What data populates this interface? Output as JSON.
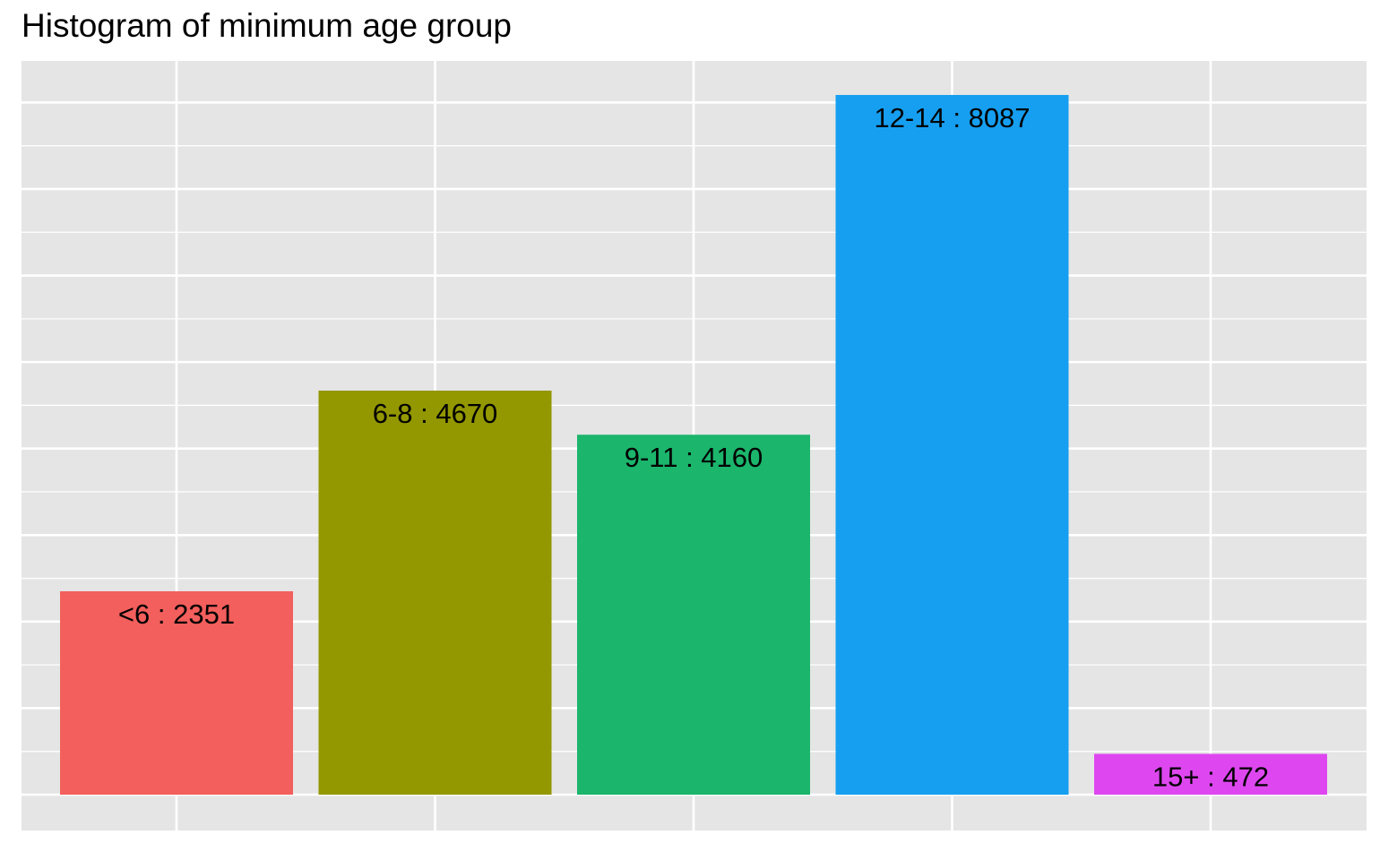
{
  "chart_data": {
    "type": "bar",
    "title": "Histogram of minimum age group",
    "xlabel": "",
    "ylabel": "",
    "categories": [
      "<6",
      "6-8",
      "9-11",
      "12-14",
      "15+"
    ],
    "values": [
      2351,
      4670,
      4160,
      8087,
      472
    ],
    "data_labels": [
      "<6 : 2351",
      "6-8 : 4670",
      "9-11 : 4160",
      "12-14 : 8087",
      "15+ : 472"
    ],
    "colors": [
      "#F25F5C",
      "#939700",
      "#1BB56C",
      "#169FF0",
      "#DE47F0"
    ],
    "ylim": [
      -400,
      8500
    ],
    "panel_background": "#E5E5E5",
    "grid_color": "#FFFFFF",
    "grid": true,
    "legend": "none",
    "axes_visible": false
  }
}
